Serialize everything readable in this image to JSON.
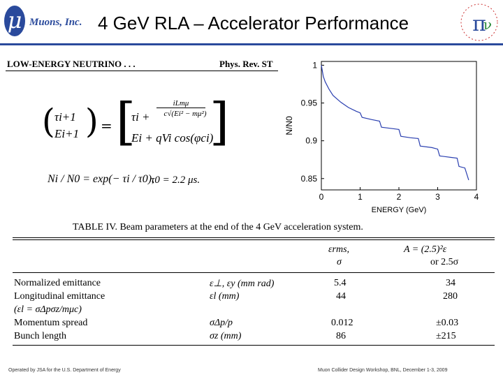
{
  "header": {
    "logo_symbol": "μ",
    "logo_text": "Muons, Inc.",
    "title": "4 GeV RLA – Accelerator Performance",
    "accent_color": "#2a4a9c"
  },
  "paper": {
    "running_head_left": "LOW-ENERGY NEUTRINO . . .",
    "running_head_right": "Phys. Rev. ST",
    "eq1_lhs_top": "τi+1",
    "eq1_lhs_bot": "Ei+1",
    "eq1_equals": "=",
    "eq1_rhs_top_a": "τi +",
    "eq1_rhs_top_frac_num": "iLmμ",
    "eq1_rhs_top_frac_den": "c√(Ei² − mμ²)",
    "eq1_rhs_bot": "Ei + qVi cos(φci)",
    "eq2": "Ni / N0 = exp(− τi / τ0),",
    "eq2_tau0": "τ0 = 2.2 μs."
  },
  "chart_data": {
    "type": "line",
    "xlabel": "ENERGY (GeV)",
    "ylabel": "N/N0",
    "x_ticks": [
      "0",
      "1",
      "2",
      "3",
      "4"
    ],
    "y_ticks": [
      "0.85",
      "0.9",
      "0.95",
      "1"
    ],
    "xlim": [
      0,
      4
    ],
    "ylim": [
      0.835,
      1.005
    ],
    "grid": false,
    "series": [
      {
        "color": "#2a3fb0",
        "x": [
          0.0,
          0.05,
          0.1,
          0.2,
          0.3,
          0.5,
          0.7,
          0.9,
          1.0,
          1.05,
          1.3,
          1.5,
          1.55,
          1.85,
          2.0,
          2.05,
          2.3,
          2.5,
          2.55,
          2.85,
          3.0,
          3.05,
          3.35,
          3.5,
          3.55,
          3.7,
          3.8
        ],
        "y": [
          1.0,
          0.985,
          0.978,
          0.968,
          0.96,
          0.951,
          0.944,
          0.939,
          0.937,
          0.931,
          0.928,
          0.926,
          0.918,
          0.916,
          0.915,
          0.906,
          0.904,
          0.903,
          0.893,
          0.891,
          0.889,
          0.88,
          0.878,
          0.877,
          0.866,
          0.864,
          0.848
        ]
      }
    ]
  },
  "table": {
    "title": "TABLE IV.   Beam parameters at the end of the 4 GeV acceleration system.",
    "col_eps_top": "εrms,",
    "col_eps_bot": "σ",
    "col_a_top": "A = (2.5)²ε",
    "col_a_bot": "or 2.5σ",
    "rows": [
      {
        "name": "Normalized emittance",
        "sym": "ε⊥, εy (mm rad)",
        "v1": "5.4",
        "v2": "34"
      },
      {
        "name": "Longitudinal emittance",
        "sym": "εl (mm)",
        "v1": "44",
        "v2": "280"
      },
      {
        "name": "(εl = σΔpσz/mμc)",
        "sym": "",
        "v1": "",
        "v2": ""
      },
      {
        "name": "Momentum spread",
        "sym": "σΔp/p",
        "v1": "0.012",
        "v2": "±0.03"
      },
      {
        "name": "Bunch length",
        "sym": "σz (mm)",
        "v1": "86",
        "v2": "±215"
      }
    ]
  },
  "footer": {
    "left": "Operated by JSA for the U.S. Department of Energy",
    "right": "Muon Collider Design Workshop,  BNL,  December 1-3, 2009"
  }
}
